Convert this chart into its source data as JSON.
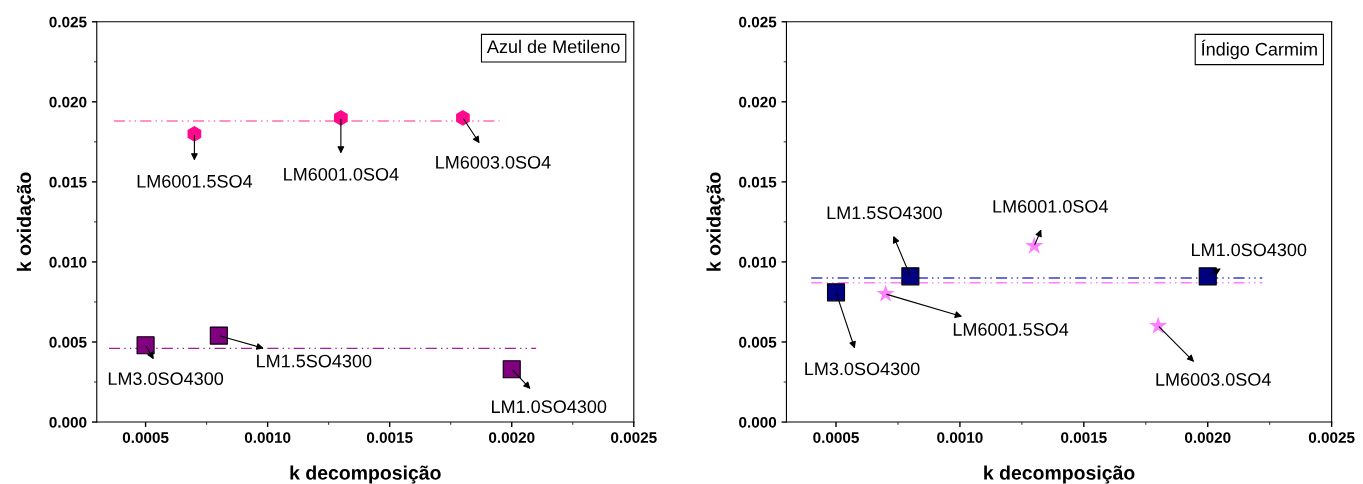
{
  "chart_data": [
    {
      "type": "scatter",
      "title": "Azul de Metileno",
      "xlabel": "k decomposição",
      "ylabel": "k oxidação",
      "series": [
        {
          "color": "#ff0a8c",
          "x": [
            0.0007,
            0.0013,
            0.0018
          ],
          "values": [
            0.018,
            0.019,
            0.019
          ]
        },
        {
          "color": "#800080",
          "marker": "square",
          "x": [
            0.0005,
            0.0008,
            0.002
          ],
          "values": [
            0.0048,
            0.0054,
            0.0033
          ]
        },
        {
          "type": "line",
          "color": "#ff6eb4",
          "line_style": "dashed",
          "x": [
            0.00037,
            0.00195
          ],
          "values": [
            0.0188,
            0.0188
          ]
        },
        {
          "type": "line",
          "color": "#a020a0",
          "line_style": "dashed",
          "x": [
            0.00035,
            0.0021
          ],
          "values": [
            0.0046,
            0.0046
          ]
        }
      ],
      "annotations": [
        {
          "text": "LM6001.5SO4",
          "x": 0.0007,
          "y": 0.018
        },
        {
          "text": "LM6001.0SO4",
          "x": 0.0013,
          "y": 0.019
        },
        {
          "text": "LM6003.0SO4",
          "x": 0.0018,
          "y": 0.019
        },
        {
          "text": "LM3.0SO4300",
          "x": 0.0005,
          "y": 0.0048
        },
        {
          "text": "LM1.5SO4300",
          "x": 0.0008,
          "y": 0.0054
        },
        {
          "text": "LM1.0SO4300",
          "x": 0.002,
          "y": 0.0033
        }
      ],
      "xlim": [
        0.0003,
        0.0025
      ],
      "xticks": [
        {
          "value": 0.0005,
          "label": "0.0005"
        },
        {
          "value": 0.001,
          "label": "0.0010"
        },
        {
          "value": 0.0015,
          "label": "0.0015"
        },
        {
          "value": 0.002,
          "label": "0.0020"
        },
        {
          "value": 0.0025,
          "label": "0.0025"
        }
      ],
      "ylim": [
        0,
        0.025
      ],
      "yticks": [
        {
          "value": 0,
          "label": "0.000"
        },
        {
          "value": 0.005,
          "label": "0.005"
        },
        {
          "value": 0.01,
          "label": "0.010"
        },
        {
          "value": 0.015,
          "label": "0.015"
        },
        {
          "value": 0.02,
          "label": "0.020"
        },
        {
          "value": 0.025,
          "label": "0.025"
        }
      ],
      "grid": false
    },
    {
      "type": "scatter",
      "title": "Índigo Carmim",
      "xlabel": "k decomposição",
      "ylabel": "k oxidação",
      "series": [
        {
          "color": "#000080",
          "marker": "square",
          "x": [
            0.0005,
            0.0008,
            0.002
          ],
          "values": [
            0.0081,
            0.0091,
            0.0091
          ]
        },
        {
          "color": "#ff80ff",
          "marker": "star",
          "x": [
            0.0007,
            0.0013,
            0.0018
          ],
          "values": [
            0.008,
            0.011,
            0.006
          ]
        },
        {
          "type": "line",
          "color": "#3c3cc8",
          "line_style": "dashed",
          "x": [
            0.0004,
            0.00222
          ],
          "values": [
            0.009,
            0.009
          ]
        },
        {
          "type": "line",
          "color": "#ff80ff",
          "line_style": "dashed",
          "x": [
            0.0004,
            0.00222
          ],
          "values": [
            0.0087,
            0.0087
          ]
        }
      ],
      "annotations": [
        {
          "text": "LM1.5SO4300",
          "x": 0.0008,
          "y": 0.0091
        },
        {
          "text": "LM6001.0SO4",
          "x": 0.0013,
          "y": 0.011
        },
        {
          "text": "LM1.0SO4300",
          "x": 0.002,
          "y": 0.0091
        },
        {
          "text": "LM3.0SO4300",
          "x": 0.0005,
          "y": 0.0081
        },
        {
          "text": "LM6001.5SO4",
          "x": 0.0007,
          "y": 0.008
        },
        {
          "text": "LM6003.0SO4",
          "x": 0.0018,
          "y": 0.006
        }
      ],
      "xlim": [
        0.0003,
        0.0025
      ],
      "xticks": [
        {
          "value": 0.0005,
          "label": "0.0005"
        },
        {
          "value": 0.001,
          "label": "0.0010"
        },
        {
          "value": 0.0015,
          "label": "0.0015"
        },
        {
          "value": 0.002,
          "label": "0.0020"
        },
        {
          "value": 0.0025,
          "label": "0.0025"
        }
      ],
      "ylim": [
        0,
        0.025
      ],
      "yticks": [
        {
          "value": 0,
          "label": "0.000"
        },
        {
          "value": 0.005,
          "label": "0.005"
        },
        {
          "value": 0.01,
          "label": "0.010"
        },
        {
          "value": 0.015,
          "label": "0.015"
        },
        {
          "value": 0.02,
          "label": "0.020"
        },
        {
          "value": 0.025,
          "label": "0.025"
        }
      ],
      "grid": false
    }
  ]
}
